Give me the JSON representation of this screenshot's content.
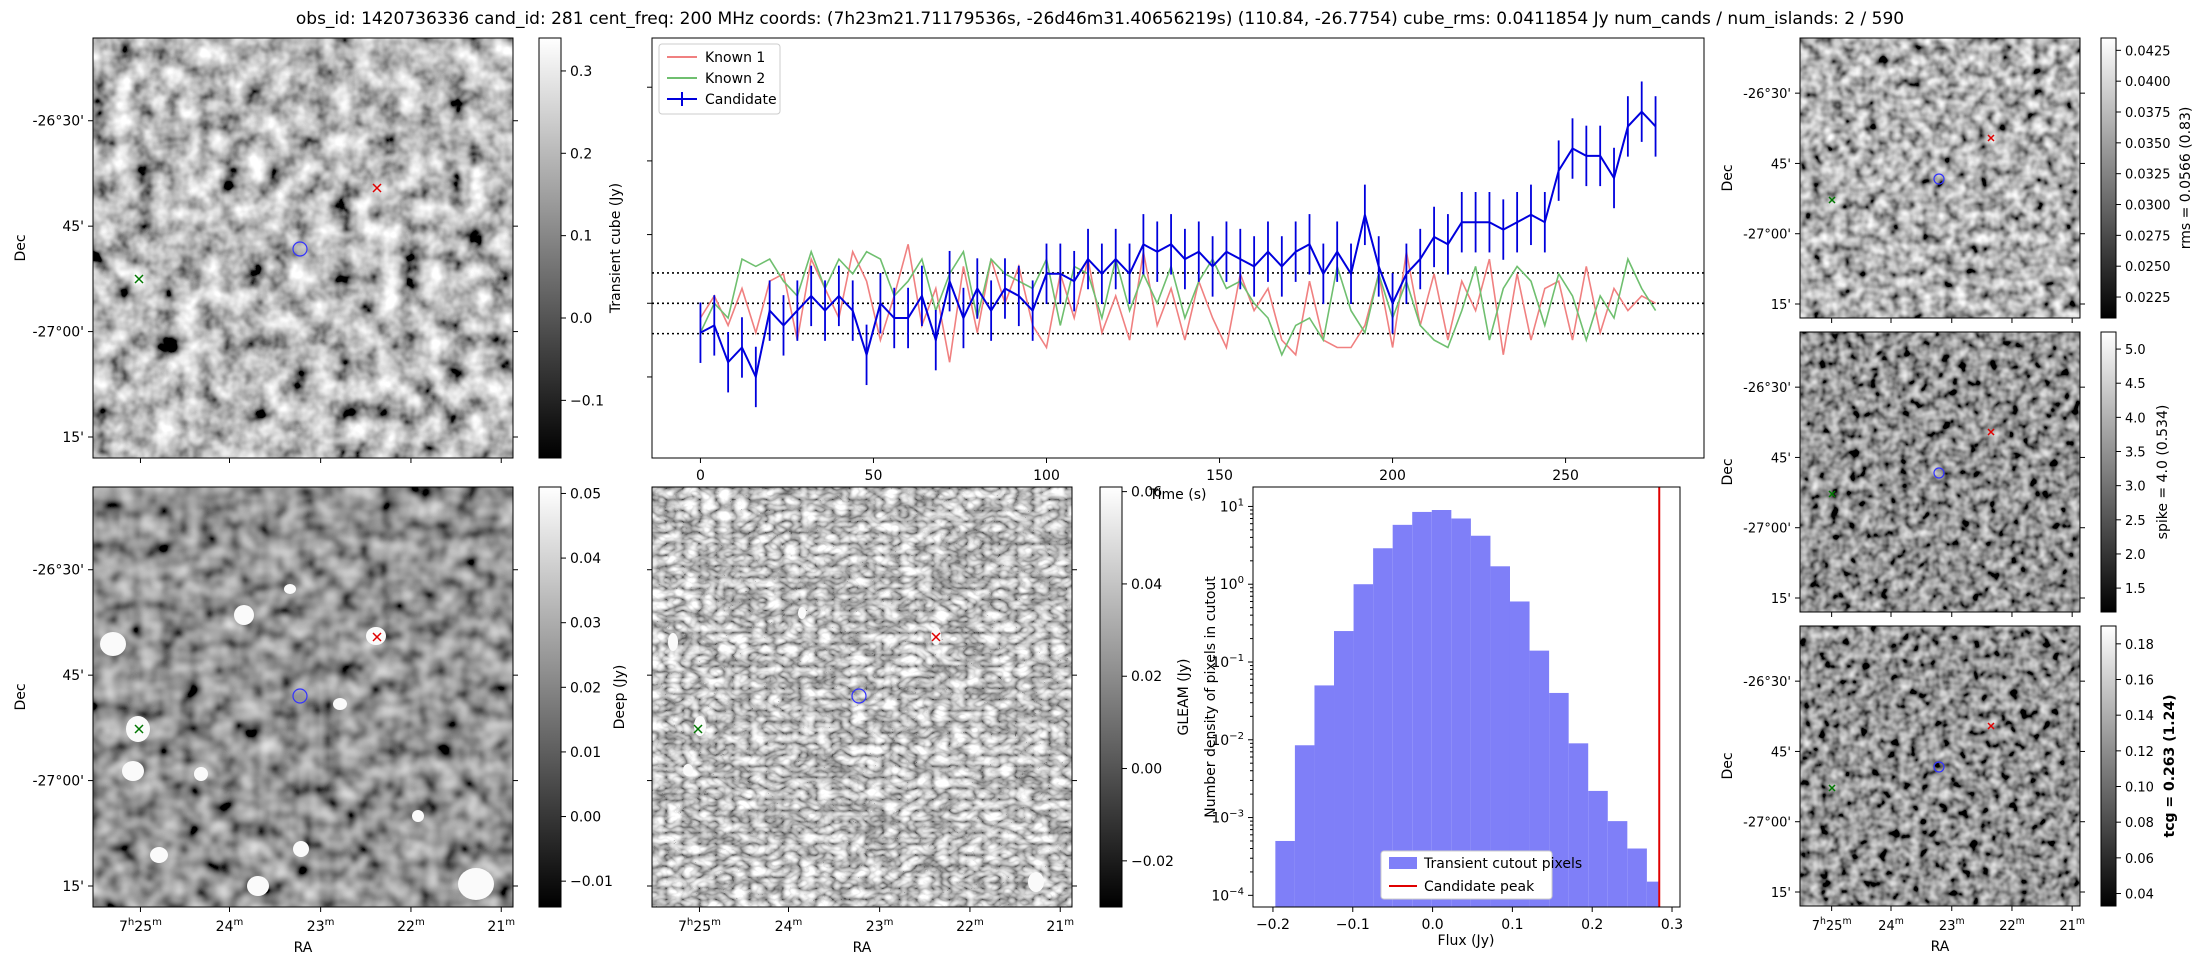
{
  "figure": {
    "suptitle": "obs_id: 1420736336 cand_id: 281 cent_freq: 200 MHz coords: (7h23m21.71179536s, -26d46m31.40656219s) (110.84, -26.7754) cube_rms: 0.0411854 Jy num_cands / num_islands: 2 / 590"
  },
  "sky_axes": {
    "dec_ticks": [
      "-26°30'",
      "45'",
      "-27°00'",
      "15'"
    ],
    "ra_ticks": [
      "7h25m",
      "24m",
      "23m",
      "22m",
      "21m"
    ],
    "ylabel": "Dec",
    "xlabel": "RA",
    "candidate_marker_color": "#3333ff",
    "known1_marker_color": "#e00000",
    "known2_marker_color": "#007700"
  },
  "chart_data": [
    {
      "type": "heatmap",
      "panel": "transient-cube-cutout",
      "colorbar_label": "Transient cube (Jy)",
      "colorbar_ticks": [
        -0.1,
        0.0,
        0.1,
        0.2,
        0.3
      ],
      "colorbar_tick_labels": [
        "−0.1",
        "0.0",
        "0.1",
        "0.2",
        "0.3"
      ],
      "vmin": -0.17,
      "vmax": 0.34,
      "cmap": "gray"
    },
    {
      "type": "line",
      "panel": "lightcurve",
      "xlabel": "Time (s)",
      "xticks": [
        0,
        50,
        100,
        150,
        200,
        250
      ],
      "xlim": [
        -14,
        290
      ],
      "ylim": [
        -0.21,
        0.36
      ],
      "hlines": [
        -0.0412,
        0.0,
        0.0412
      ],
      "hline_style": "dotted",
      "series": [
        {
          "name": "Known 1",
          "color": "#f08080",
          "x": [
            0,
            4,
            8,
            12,
            16,
            20,
            24,
            28,
            32,
            36,
            40,
            44,
            48,
            52,
            56,
            60,
            64,
            68,
            72,
            76,
            80,
            84,
            88,
            92,
            96,
            100,
            104,
            108,
            112,
            116,
            120,
            124,
            128,
            132,
            136,
            140,
            144,
            148,
            152,
            156,
            160,
            164,
            168,
            172,
            176,
            180,
            184,
            188,
            192,
            196,
            200,
            204,
            208,
            212,
            216,
            220,
            224,
            228,
            232,
            236,
            240,
            244,
            248,
            252,
            256,
            260,
            264,
            268,
            272,
            276
          ],
          "y": [
            -0.02,
            0.01,
            -0.03,
            0.02,
            -0.04,
            0.03,
            0.04,
            -0.05,
            0.06,
            0.02,
            -0.02,
            0.07,
            0.03,
            -0.05,
            0.01,
            0.08,
            -0.03,
            0.02,
            -0.08,
            0.05,
            -0.04,
            0.06,
            0.0,
            0.05,
            -0.03,
            -0.06,
            0.04,
            -0.02,
            0.06,
            -0.04,
            0.01,
            -0.05,
            0.07,
            -0.03,
            0.02,
            -0.05,
            0.03,
            -0.02,
            -0.06,
            0.04,
            -0.01,
            0.02,
            -0.05,
            -0.07,
            0.03,
            -0.05,
            -0.06,
            -0.06,
            -0.03,
            0.04,
            -0.06,
            0.07,
            -0.03,
            0.04,
            -0.05,
            0.03,
            -0.01,
            0.06,
            -0.07,
            0.04,
            -0.05,
            0.02,
            0.03,
            -0.05,
            0.05,
            -0.04,
            0.02,
            -0.01,
            0.01,
            0.0
          ]
        },
        {
          "name": "Known 2",
          "color": "#6fbf6f",
          "x": [
            0,
            4,
            8,
            12,
            16,
            20,
            24,
            28,
            32,
            36,
            40,
            44,
            48,
            52,
            56,
            60,
            64,
            68,
            72,
            76,
            80,
            84,
            88,
            92,
            96,
            100,
            104,
            108,
            112,
            116,
            120,
            124,
            128,
            132,
            136,
            140,
            144,
            148,
            152,
            156,
            160,
            164,
            168,
            172,
            176,
            180,
            184,
            188,
            192,
            196,
            200,
            204,
            208,
            212,
            216,
            220,
            224,
            228,
            232,
            236,
            240,
            244,
            248,
            252,
            256,
            260,
            264,
            268,
            272,
            276
          ],
          "y": [
            -0.04,
            0.0,
            -0.02,
            0.06,
            0.05,
            0.06,
            0.03,
            0.01,
            0.07,
            0.02,
            0.06,
            0.04,
            0.07,
            0.06,
            0.01,
            0.03,
            0.06,
            -0.01,
            0.04,
            0.07,
            -0.02,
            0.06,
            0.04,
            0.03,
            0.02,
            0.06,
            -0.03,
            0.05,
            0.04,
            -0.02,
            0.06,
            -0.01,
            0.04,
            0.0,
            0.05,
            -0.02,
            0.03,
            0.06,
            0.02,
            0.03,
            0.0,
            -0.02,
            -0.07,
            -0.03,
            -0.02,
            -0.05,
            0.05,
            -0.01,
            -0.04,
            0.04,
            -0.02,
            0.03,
            -0.03,
            -0.05,
            -0.06,
            -0.01,
            0.05,
            -0.05,
            0.02,
            0.05,
            0.03,
            -0.03,
            0.04,
            0.01,
            -0.05,
            0.01,
            -0.02,
            0.06,
            0.02,
            -0.01
          ]
        },
        {
          "name": "Candidate",
          "color": "#0000dd",
          "errorbars": true,
          "yerr": 0.041,
          "x": [
            0,
            4,
            8,
            12,
            16,
            20,
            24,
            28,
            32,
            36,
            40,
            44,
            48,
            52,
            56,
            60,
            64,
            68,
            72,
            76,
            80,
            84,
            88,
            92,
            96,
            100,
            104,
            108,
            112,
            116,
            120,
            124,
            128,
            132,
            136,
            140,
            144,
            148,
            152,
            156,
            160,
            164,
            168,
            172,
            176,
            180,
            184,
            188,
            192,
            196,
            200,
            204,
            208,
            212,
            216,
            220,
            224,
            228,
            232,
            236,
            240,
            244,
            248,
            252,
            256,
            260,
            264,
            268,
            272,
            276
          ],
          "y": [
            -0.04,
            -0.03,
            -0.08,
            -0.06,
            -0.1,
            -0.01,
            -0.03,
            -0.01,
            0.01,
            -0.01,
            0.01,
            -0.01,
            -0.07,
            0.0,
            -0.02,
            -0.02,
            0.01,
            -0.05,
            0.03,
            -0.02,
            0.02,
            -0.01,
            0.02,
            0.01,
            -0.01,
            0.04,
            0.04,
            0.03,
            0.06,
            0.04,
            0.06,
            0.04,
            0.08,
            0.07,
            0.08,
            0.06,
            0.07,
            0.05,
            0.07,
            0.06,
            0.05,
            0.07,
            0.05,
            0.07,
            0.08,
            0.04,
            0.07,
            0.04,
            0.12,
            0.05,
            0.0,
            0.04,
            0.06,
            0.09,
            0.08,
            0.11,
            0.11,
            0.11,
            0.1,
            0.11,
            0.12,
            0.11,
            0.18,
            0.21,
            0.2,
            0.2,
            0.17,
            0.24,
            0.26,
            0.24
          ]
        }
      ],
      "legend_loc": "upper-left"
    },
    {
      "type": "heatmap",
      "panel": "deep-image-cutout",
      "colorbar_label": "Deep (Jy)",
      "colorbar_ticks": [
        -0.01,
        0.0,
        0.01,
        0.02,
        0.03,
        0.04,
        0.05
      ],
      "colorbar_tick_labels": [
        "−0.01",
        "0.00",
        "0.01",
        "0.02",
        "0.03",
        "0.04",
        "0.05"
      ],
      "vmin": -0.014,
      "vmax": 0.051,
      "cmap": "gray"
    },
    {
      "type": "heatmap",
      "panel": "gleam-cutout",
      "colorbar_label": "GLEAM (Jy)",
      "colorbar_ticks": [
        -0.02,
        0.0,
        0.02,
        0.04,
        0.06
      ],
      "colorbar_tick_labels": [
        "−0.02",
        "0.00",
        "0.02",
        "0.04",
        "0.06"
      ],
      "vmin": -0.03,
      "vmax": 0.061,
      "cmap": "gray"
    },
    {
      "type": "bar",
      "panel": "pixel-histogram",
      "xlabel": "Flux (Jy)",
      "ylabel": "Number density of pixels in cutout",
      "xlim": [
        -0.225,
        0.31
      ],
      "ylog": true,
      "ylim_exp": [
        -4.15,
        1.25
      ],
      "xticks": [
        -0.2,
        -0.1,
        0.0,
        0.1,
        0.2,
        0.3
      ],
      "xtick_labels": [
        "−0.2",
        "−0.1",
        "0.0",
        "0.1",
        "0.2",
        "0.3"
      ],
      "yticks_exp": [
        -4,
        -3,
        -2,
        -1,
        0,
        1
      ],
      "ytick_labels": [
        "10−4",
        "10−3",
        "10−2",
        "10−1",
        "100",
        "101"
      ],
      "bin_edges": [
        -0.197,
        -0.1725,
        -0.148,
        -0.1235,
        -0.099,
        -0.0745,
        -0.05,
        -0.0255,
        -0.001,
        0.0235,
        0.048,
        0.0725,
        0.097,
        0.1215,
        0.146,
        0.1705,
        0.195,
        0.2195,
        0.244,
        0.2685,
        0.283
      ],
      "values": [
        0.0005,
        0.0085,
        0.05,
        0.25,
        1.0,
        2.9,
        5.8,
        8.5,
        9.0,
        7.0,
        4.2,
        1.7,
        0.6,
        0.14,
        0.04,
        0.009,
        0.0022,
        0.0009,
        0.0004,
        0.00015
      ],
      "bar_color": "#7f7ff8",
      "vline": 0.284,
      "vline_color": "#e00000",
      "series": [
        {
          "name": "Transient cutout pixels"
        },
        {
          "name": "Candidate peak"
        }
      ],
      "legend_loc": "lower-center"
    },
    {
      "type": "heatmap",
      "panel": "rms-cutout",
      "colorbar_label": "rms = 0.0566 (0.83)",
      "colorbar_ticks": [
        0.0225,
        0.025,
        0.0275,
        0.03,
        0.0325,
        0.035,
        0.0375,
        0.04,
        0.0425
      ],
      "colorbar_tick_labels": [
        "0.0225",
        "0.0250",
        "0.0275",
        "0.0300",
        "0.0325",
        "0.0350",
        "0.0375",
        "0.0400",
        "0.0425"
      ],
      "vmin": 0.0208,
      "vmax": 0.0435,
      "cmap": "gray"
    },
    {
      "type": "heatmap",
      "panel": "spike-cutout",
      "colorbar_label": "spike = 4.0 (0.534)",
      "colorbar_ticks": [
        1.5,
        2.0,
        2.5,
        3.0,
        3.5,
        4.0,
        4.5,
        5.0
      ],
      "colorbar_tick_labels": [
        "1.5",
        "2.0",
        "2.5",
        "3.0",
        "3.5",
        "4.0",
        "4.5",
        "5.0"
      ],
      "vmin": 1.15,
      "vmax": 5.25,
      "cmap": "gray"
    },
    {
      "type": "heatmap",
      "panel": "tcg-cutout",
      "colorbar_label": "tcg = 0.263 (1.24)",
      "colorbar_bold": true,
      "colorbar_ticks": [
        0.04,
        0.06,
        0.08,
        0.1,
        0.12,
        0.14,
        0.16,
        0.18
      ],
      "colorbar_tick_labels": [
        "0.04",
        "0.06",
        "0.08",
        "0.10",
        "0.12",
        "0.14",
        "0.16",
        "0.18"
      ],
      "vmin": 0.033,
      "vmax": 0.19,
      "cmap": "gray"
    }
  ]
}
